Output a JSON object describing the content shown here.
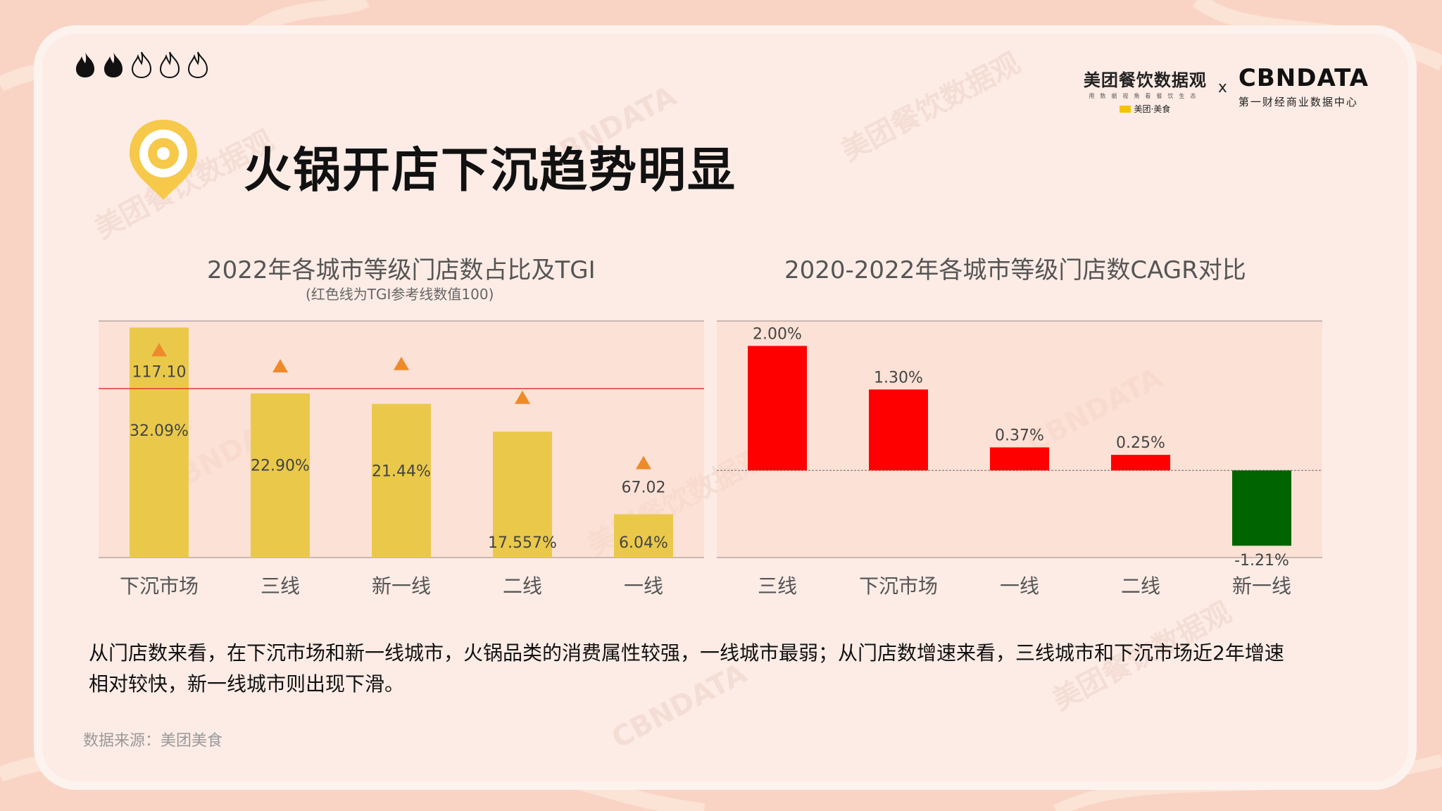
{
  "header": {
    "meituan_title": "美团餐饮数据观",
    "meituan_sub": "用数据视角看餐饮生态",
    "meituan_brand": "美团·美食",
    "x_sep": "x",
    "cbn_title": "CBNDATA",
    "cbn_sub": "第一财经商业数据中心"
  },
  "page": {
    "title": "火锅开店下沉趋势明显",
    "flames": {
      "filled": 2,
      "total": 5
    }
  },
  "left_chart": {
    "title": "2022年各城市等级门店数占比及TGI",
    "subtitle": "(红色线为TGI参考线数值100)"
  },
  "right_chart": {
    "title": "2020-2022年各城市等级门店数CAGR对比"
  },
  "chart_data": [
    {
      "type": "bar",
      "title": "2022年各城市等级门店数占比及TGI",
      "subtitle": "(红色线为TGI参考线数值100)",
      "categories": [
        "下沉市场",
        "三线",
        "新一线",
        "二线",
        "一线"
      ],
      "series": [
        {
          "values": [
            32.09,
            22.9,
            21.44,
            17.557,
            6.04
          ],
          "labels": [
            "32.09%",
            "22.90%",
            "21.44%",
            "17.557%",
            "6.04%"
          ],
          "color": "#eac94a"
        },
        {
          "values": [
            117.1,
            110,
            111,
            96,
            67.02
          ],
          "labels": [
            "117.10",
            "",
            "",
            "",
            "67.02"
          ],
          "marker": "triangle",
          "color": "#ee8a2a"
        }
      ],
      "reference_line": {
        "value": 100,
        "color": "#e53935"
      },
      "grid": false
    },
    {
      "type": "bar",
      "title": "2020-2022年各城市等级门店数CAGR对比",
      "categories": [
        "三线",
        "下沉市场",
        "一线",
        "二线",
        "新一线"
      ],
      "values": [
        2.0,
        1.3,
        0.37,
        0.25,
        -1.21
      ],
      "labels": [
        "2.00%",
        "1.30%",
        "0.37%",
        "0.25%",
        "-1.21%"
      ],
      "colors": {
        "positive": "#ff0000",
        "negative": "#006400"
      },
      "grid": false
    }
  ],
  "summary": {
    "line1": "从门店数来看，在下沉市场和新一线城市，火锅品类的消费属性较强，一线城市最弱；从门店数增速来看，三线城市和下沉市场近2年增速",
    "line2": "相对较快，新一线城市则出现下滑。"
  },
  "source": "数据来源：美团美食",
  "watermark": {
    "left": "美团餐饮数据观",
    "right": "CBNDATA"
  },
  "colors": {
    "accent_yellow": "#f6c94b",
    "bar_yellow": "#eac94a",
    "tgi_orange": "#ee8a2a",
    "ref_red": "#e53935",
    "up_red": "#ff0000",
    "down_green": "#006400"
  }
}
